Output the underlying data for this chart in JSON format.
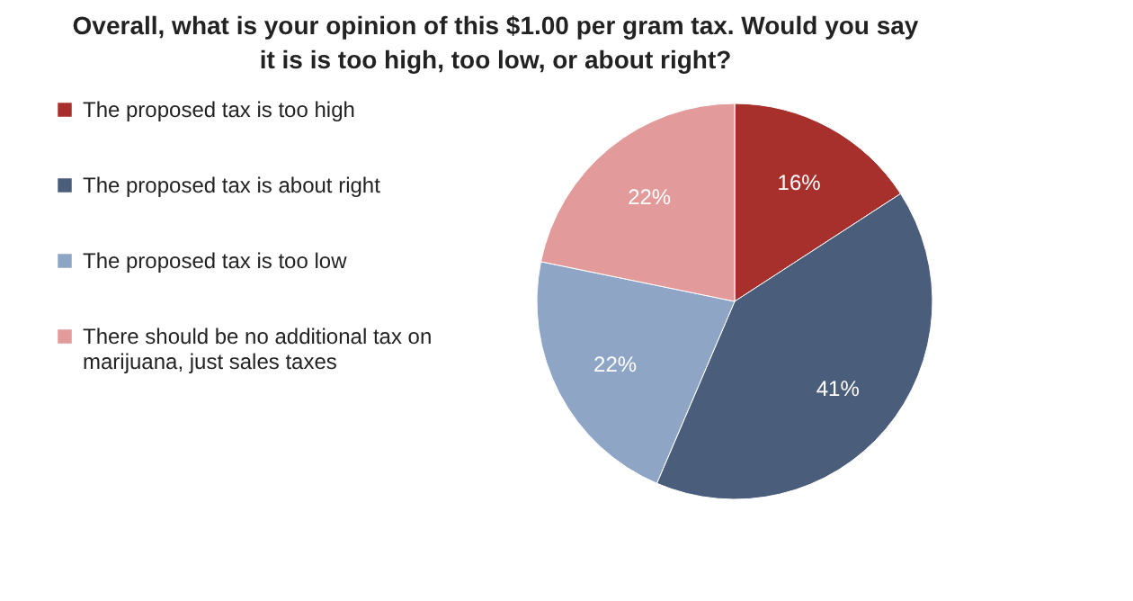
{
  "chart_data": {
    "type": "pie",
    "title": "Overall, what is your opinion of this $1.00 per gram tax. Would you say it is is too high, too low, or about right?",
    "categories": [
      "The proposed tax is too high",
      "The proposed tax is about right",
      "The proposed tax is too low",
      "There should be no additional tax on marijuana, just sales taxes"
    ],
    "values": [
      16,
      41,
      22,
      22
    ],
    "value_labels": [
      "16%",
      "41%",
      "22%",
      "22%"
    ],
    "colors": [
      "#a8302c",
      "#4a5d7a",
      "#8fa5c5",
      "#e39a9a"
    ],
    "legend": "left"
  }
}
